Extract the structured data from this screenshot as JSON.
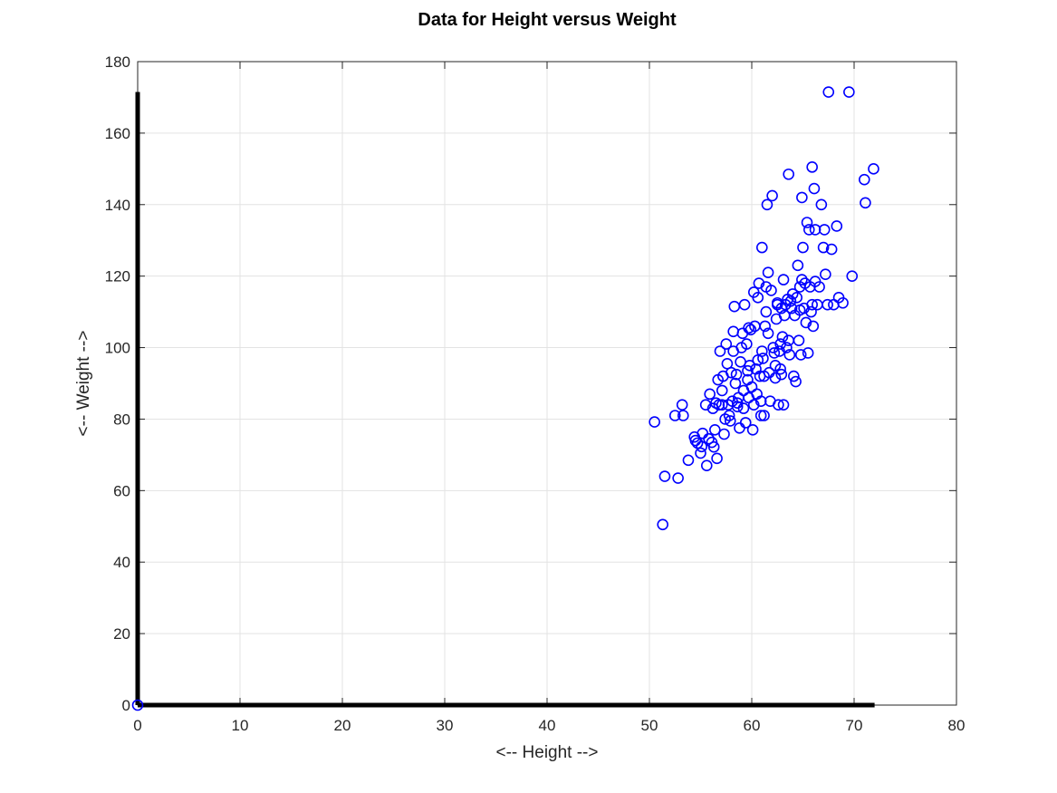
{
  "colors": {
    "background": "#ffffff",
    "marker": "#0000ff",
    "thick_lines": "#000000",
    "grid": "#e3e3e3",
    "axes": "#262626"
  },
  "chart_data": {
    "type": "scatter",
    "title": "Data for Height versus Weight",
    "xlabel": "<-- Height -->",
    "ylabel": "<-- Weight -->",
    "xlim": [
      0,
      80
    ],
    "ylim": [
      0,
      180
    ],
    "xticks": [
      "0",
      "10",
      "20",
      "30",
      "40",
      "50",
      "60",
      "70",
      "80"
    ],
    "yticks": [
      "0",
      "20",
      "40",
      "60",
      "80",
      "100",
      "120",
      "140",
      "160",
      "180"
    ],
    "grid": true,
    "marker": "circle",
    "axis_lines": [
      {
        "from": [
          0,
          0
        ],
        "to": [
          0,
          171.5
        ]
      },
      {
        "from": [
          0,
          0
        ],
        "to": [
          72,
          0
        ]
      }
    ],
    "series": [
      {
        "points": [
          [
            0,
            0
          ],
          [
            50.5,
            79.2
          ],
          [
            51.3,
            50.5
          ],
          [
            51.5,
            64
          ],
          [
            52.5,
            81
          ],
          [
            52.8,
            63.5
          ],
          [
            53.2,
            84
          ],
          [
            53.3,
            81
          ],
          [
            53.8,
            68.5
          ],
          [
            54.4,
            75
          ],
          [
            54.5,
            74
          ],
          [
            54.7,
            73.3
          ],
          [
            55,
            70.5
          ],
          [
            55.1,
            72.3
          ],
          [
            55.2,
            76
          ],
          [
            55.5,
            84
          ],
          [
            55.6,
            67
          ],
          [
            55.8,
            74.5
          ],
          [
            55.9,
            87
          ],
          [
            56.1,
            73.5
          ],
          [
            56.3,
            72.2
          ],
          [
            56.4,
            77
          ],
          [
            56.5,
            84.5
          ],
          [
            56.6,
            69
          ],
          [
            56.7,
            91
          ],
          [
            56.8,
            84
          ],
          [
            56.9,
            99
          ],
          [
            57.1,
            84
          ],
          [
            57.2,
            92
          ],
          [
            57.3,
            75.8
          ],
          [
            57.4,
            80
          ],
          [
            57.5,
            101
          ],
          [
            57.6,
            95.5
          ],
          [
            57.7,
            84
          ],
          [
            57.8,
            81
          ],
          [
            57.9,
            79.5
          ],
          [
            58,
            93
          ],
          [
            58.1,
            85
          ],
          [
            58.2,
            104.5
          ],
          [
            58.3,
            111.5
          ],
          [
            58.4,
            90
          ],
          [
            58.5,
            92.5
          ],
          [
            58.6,
            83.5
          ],
          [
            58.7,
            86
          ],
          [
            58.8,
            77.5
          ],
          [
            58.9,
            96
          ],
          [
            59,
            100
          ],
          [
            59.1,
            104
          ],
          [
            59.2,
            88
          ],
          [
            59.3,
            112
          ],
          [
            59.4,
            79
          ],
          [
            59.5,
            101
          ],
          [
            59.6,
            91
          ],
          [
            59.7,
            86
          ],
          [
            59.8,
            95
          ],
          [
            59.9,
            105
          ],
          [
            60,
            89
          ],
          [
            60.1,
            77
          ],
          [
            60.2,
            84
          ],
          [
            60.3,
            106
          ],
          [
            60.4,
            94
          ],
          [
            60.5,
            87
          ],
          [
            60.6,
            114
          ],
          [
            60.7,
            118
          ],
          [
            60.8,
            92
          ],
          [
            60.9,
            85
          ],
          [
            61,
            128
          ],
          [
            61.1,
            97
          ],
          [
            61.2,
            92
          ],
          [
            61.3,
            106
          ],
          [
            61.4,
            110
          ],
          [
            61.5,
            140
          ],
          [
            61.6,
            104
          ],
          [
            61.7,
            93
          ],
          [
            61.8,
            85
          ],
          [
            61.9,
            116
          ],
          [
            62,
            142.5
          ],
          [
            62.1,
            100
          ],
          [
            62.2,
            98.5
          ],
          [
            62.3,
            91.5
          ],
          [
            62.4,
            108
          ],
          [
            62.5,
            112
          ],
          [
            62.6,
            84
          ],
          [
            62.7,
            99
          ],
          [
            62.8,
            94
          ],
          [
            62.9,
            111
          ],
          [
            63,
            103
          ],
          [
            63.1,
            84
          ],
          [
            63.2,
            109
          ],
          [
            63.3,
            112
          ],
          [
            63.4,
            100
          ],
          [
            63.5,
            113.5
          ],
          [
            63.6,
            148.5
          ],
          [
            63.7,
            98
          ],
          [
            63.8,
            113
          ],
          [
            63.9,
            111
          ],
          [
            64,
            115
          ],
          [
            64.1,
            92
          ],
          [
            64.2,
            109
          ],
          [
            64.3,
            90.5
          ],
          [
            64.4,
            114
          ],
          [
            64.5,
            123
          ],
          [
            64.6,
            102
          ],
          [
            64.7,
            117
          ],
          [
            64.8,
            98
          ],
          [
            64.9,
            142
          ],
          [
            65,
            128
          ],
          [
            65.1,
            111
          ],
          [
            65.2,
            118
          ],
          [
            65.3,
            107
          ],
          [
            65.4,
            135
          ],
          [
            65.5,
            98.5
          ],
          [
            65.6,
            133
          ],
          [
            65.7,
            117
          ],
          [
            65.8,
            110
          ],
          [
            65.9,
            150.5
          ],
          [
            66,
            106
          ],
          [
            66.1,
            144.5
          ],
          [
            66.2,
            133
          ],
          [
            66.4,
            112
          ],
          [
            66.6,
            117
          ],
          [
            66.8,
            140
          ],
          [
            67,
            128
          ],
          [
            67.1,
            133
          ],
          [
            67.2,
            120.5
          ],
          [
            67.4,
            112
          ],
          [
            67.5,
            171.5
          ],
          [
            67.8,
            127.5
          ],
          [
            68,
            112
          ],
          [
            68.3,
            134
          ],
          [
            68.5,
            114
          ],
          [
            68.9,
            112.5
          ],
          [
            69.5,
            171.5
          ],
          [
            69.8,
            120
          ],
          [
            71,
            147
          ],
          [
            71.1,
            140.5
          ],
          [
            71.9,
            150
          ],
          [
            58.2,
            99
          ],
          [
            59.6,
            93.5
          ],
          [
            60.2,
            115.5
          ],
          [
            61.2,
            81
          ],
          [
            61.6,
            121
          ],
          [
            62.3,
            95
          ],
          [
            62.8,
            101
          ],
          [
            63.6,
            102
          ],
          [
            64.7,
            110.5
          ],
          [
            66.2,
            118.5
          ],
          [
            61,
            99
          ],
          [
            60.6,
            96.5
          ],
          [
            59.2,
            83
          ],
          [
            57.1,
            88
          ],
          [
            56.2,
            83
          ],
          [
            62.5,
            112.5
          ],
          [
            61.4,
            117
          ],
          [
            63.1,
            119
          ],
          [
            64.9,
            119
          ],
          [
            65.9,
            112
          ],
          [
            62.9,
            92.5
          ],
          [
            60.9,
            81
          ],
          [
            59.7,
            105.5
          ],
          [
            58.6,
            84.5
          ]
        ]
      }
    ]
  }
}
